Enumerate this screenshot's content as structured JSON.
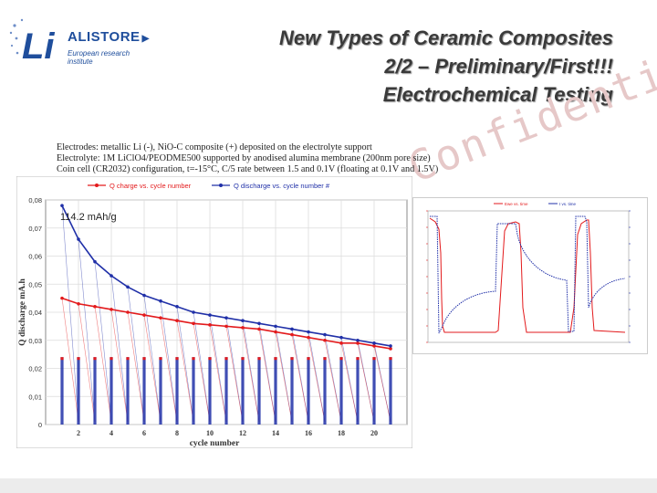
{
  "logo": {
    "mark": "Li",
    "name": "ALISTORE",
    "tagline": "European research institute"
  },
  "title": {
    "line1": "New Types of Ceramic Composites",
    "line2": "2/2 – Preliminary/First!!!",
    "line3": "Electrochemical Testing"
  },
  "watermark": "Confidential",
  "caption": {
    "line1": "Electrodes: metallic Li (-), NiO-C composite (+) deposited on the electrolyte support",
    "line2": "Electrolyte: 1M LiClO4/PEODME500 supported by anodised alumina membrane (200nm pore size)",
    "line3": "Coin cell (CR2032) configuration, t=-15°C, C/5 rate between 1.5 and 0.1V (floating at 0.1V and 1.5V)"
  },
  "chart_data": [
    {
      "type": "line",
      "xlabel": "cycle number",
      "ylabel": "Q discharge mA.h",
      "xlim": [
        0,
        22
      ],
      "ylim": [
        0,
        0.08
      ],
      "xticks": [
        2,
        4,
        6,
        8,
        10,
        12,
        14,
        16,
        18,
        20
      ],
      "yticks": [
        "0",
        "0,01",
        "0,02",
        "0,03",
        "0,04",
        "0,05",
        "0,06",
        "0,07",
        "0,08"
      ],
      "annotation": "114.2 mAh/g",
      "grid": true,
      "legend_position": "top",
      "colors": {
        "charge": "#e31a1c",
        "discharge": "#2030a8",
        "grid": "#dcdcdc"
      },
      "series": [
        {
          "name": "Q charge vs. cycle number",
          "x": [
            1,
            2,
            3,
            4,
            5,
            6,
            7,
            8,
            9,
            10,
            11,
            12,
            13,
            14,
            15,
            16,
            17,
            18,
            19,
            20,
            21
          ],
          "values": [
            0.045,
            0.043,
            0.042,
            0.041,
            0.04,
            0.039,
            0.038,
            0.037,
            0.036,
            0.0355,
            0.035,
            0.0345,
            0.034,
            0.033,
            0.032,
            0.031,
            0.03,
            0.029,
            0.029,
            0.028,
            0.027
          ]
        },
        {
          "name": "Q discharge vs. cycle number #",
          "x": [
            1,
            2,
            3,
            4,
            5,
            6,
            7,
            8,
            9,
            10,
            11,
            12,
            13,
            14,
            15,
            16,
            17,
            18,
            19,
            20,
            21
          ],
          "values": [
            0.078,
            0.066,
            0.058,
            0.053,
            0.049,
            0.046,
            0.044,
            0.042,
            0.04,
            0.039,
            0.038,
            0.037,
            0.036,
            0.035,
            0.034,
            0.033,
            0.032,
            0.031,
            0.03,
            0.029,
            0.028
          ]
        }
      ]
    },
    {
      "type": "line",
      "series": [
        {
          "name": "Ewe vs. time",
          "color": "#e31a1c"
        },
        {
          "name": "I vs. time",
          "color": "#2030a8"
        }
      ]
    }
  ]
}
